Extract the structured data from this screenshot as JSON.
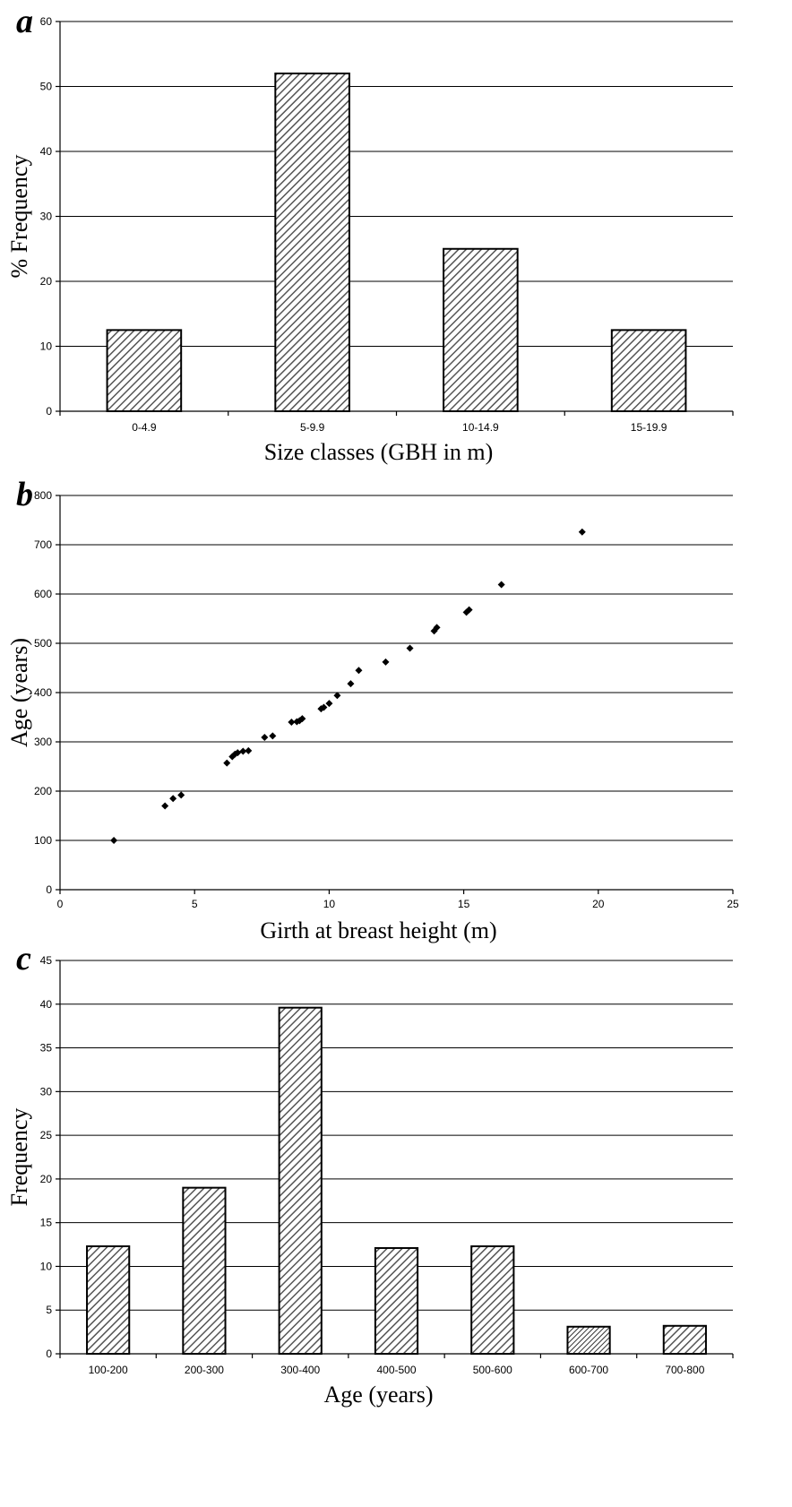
{
  "chart_data": [
    {
      "panel": "a",
      "type": "bar",
      "categories": [
        "0-4.9",
        "5-9.9",
        "10-14.9",
        "15-19.9"
      ],
      "values": [
        12.5,
        52,
        25,
        12.5
      ],
      "xlabel": "Size classes (GBH in m)",
      "ylabel": "% Frequency",
      "ylim": [
        0,
        60
      ],
      "yticks": [
        0,
        10,
        20,
        30,
        40,
        50,
        60
      ],
      "grid": true,
      "fill": "diagonal-hatch"
    },
    {
      "panel": "b",
      "type": "scatter",
      "points": [
        [
          2.0,
          100
        ],
        [
          3.9,
          170
        ],
        [
          4.2,
          185
        ],
        [
          4.5,
          192
        ],
        [
          6.2,
          257
        ],
        [
          6.4,
          270
        ],
        [
          6.5,
          275
        ],
        [
          6.6,
          278
        ],
        [
          6.8,
          281
        ],
        [
          7.0,
          282
        ],
        [
          7.6,
          309
        ],
        [
          7.9,
          312
        ],
        [
          8.6,
          340
        ],
        [
          8.8,
          341
        ],
        [
          8.9,
          343
        ],
        [
          9.0,
          347
        ],
        [
          9.7,
          367
        ],
        [
          9.8,
          370
        ],
        [
          10.0,
          378
        ],
        [
          10.3,
          394
        ],
        [
          10.8,
          418
        ],
        [
          11.1,
          445
        ],
        [
          12.1,
          462
        ],
        [
          13.0,
          490
        ],
        [
          13.9,
          525
        ],
        [
          14.0,
          532
        ],
        [
          15.1,
          563
        ],
        [
          15.2,
          568
        ],
        [
          16.4,
          619
        ],
        [
          19.4,
          726
        ]
      ],
      "xlabel": "Girth at breast height (m)",
      "ylabel": "Age (years)",
      "xlim": [
        0,
        25
      ],
      "ylim": [
        0,
        800
      ],
      "xticks": [
        0,
        5,
        10,
        15,
        20,
        25
      ],
      "yticks": [
        0,
        100,
        200,
        300,
        400,
        500,
        600,
        700,
        800
      ],
      "grid": true,
      "marker": "diamond"
    },
    {
      "panel": "c",
      "type": "bar",
      "categories": [
        "100-200",
        "200-300",
        "300-400",
        "400-500",
        "500-600",
        "600-700",
        "700-800"
      ],
      "values": [
        12.3,
        19,
        39.6,
        12.1,
        12.3,
        3.1,
        3.2
      ],
      "xlabel": "Age (years)",
      "ylabel": "Frequency",
      "ylim": [
        0,
        45
      ],
      "yticks": [
        0,
        5,
        10,
        15,
        20,
        25,
        30,
        35,
        40,
        45
      ],
      "grid": true,
      "fill": "diagonal-hatch"
    }
  ]
}
